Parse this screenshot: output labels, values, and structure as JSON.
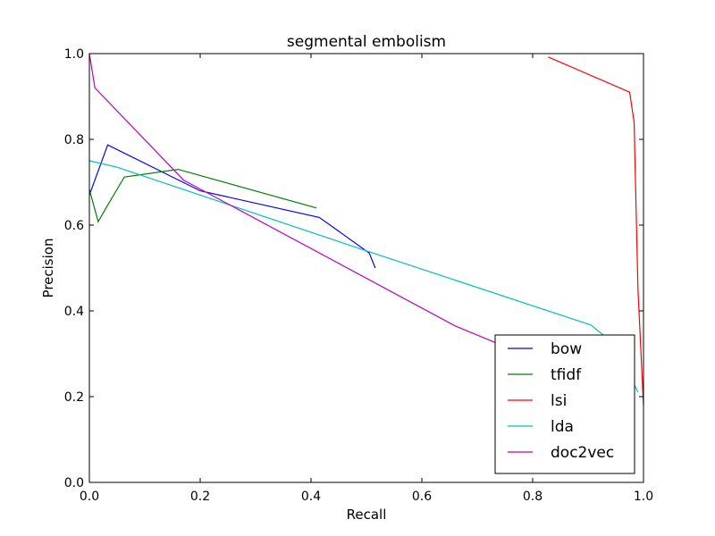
{
  "chart_data": {
    "type": "line",
    "title": "segmental embolism",
    "xlabel": "Recall",
    "ylabel": "Precision",
    "xlim": [
      0.0,
      1.0
    ],
    "ylim": [
      0.0,
      1.0
    ],
    "xticks": [
      "0.0",
      "0.2",
      "0.4",
      "0.6",
      "0.8",
      "1.0"
    ],
    "yticks": [
      "0.0",
      "0.2",
      "0.4",
      "0.6",
      "0.8",
      "1.0"
    ],
    "grid": false,
    "legend_position": "lower-right",
    "series": [
      {
        "name": "bow",
        "color": "#0000ff",
        "points": [
          [
            0.0,
            0.67
          ],
          [
            0.033,
            0.787
          ],
          [
            0.2,
            0.68
          ],
          [
            0.415,
            0.618
          ],
          [
            0.505,
            0.535
          ],
          [
            0.516,
            0.5
          ]
        ]
      },
      {
        "name": "tfidf",
        "color": "#008000",
        "points": [
          [
            0.0,
            0.683
          ],
          [
            0.016,
            0.608
          ],
          [
            0.03,
            0.64
          ],
          [
            0.063,
            0.712
          ],
          [
            0.16,
            0.73
          ],
          [
            0.41,
            0.64
          ]
        ]
      },
      {
        "name": "lsi",
        "color": "#ff0000",
        "points": [
          [
            0.828,
            0.992
          ],
          [
            0.975,
            0.91
          ],
          [
            0.983,
            0.84
          ],
          [
            0.99,
            0.45
          ],
          [
            1.0,
            0.18
          ]
        ]
      },
      {
        "name": "lda",
        "color": "#00bfbf",
        "points": [
          [
            0.0,
            0.75
          ],
          [
            0.05,
            0.735
          ],
          [
            0.5,
            0.54
          ],
          [
            0.905,
            0.367
          ],
          [
            0.95,
            0.32
          ],
          [
            0.99,
            0.21
          ]
        ]
      },
      {
        "name": "doc2vec",
        "color": "#bf00bf",
        "points": [
          [
            0.0,
            1.0
          ],
          [
            0.01,
            0.92
          ],
          [
            0.17,
            0.705
          ],
          [
            0.66,
            0.365
          ],
          [
            0.8,
            0.29
          ]
        ]
      }
    ]
  }
}
